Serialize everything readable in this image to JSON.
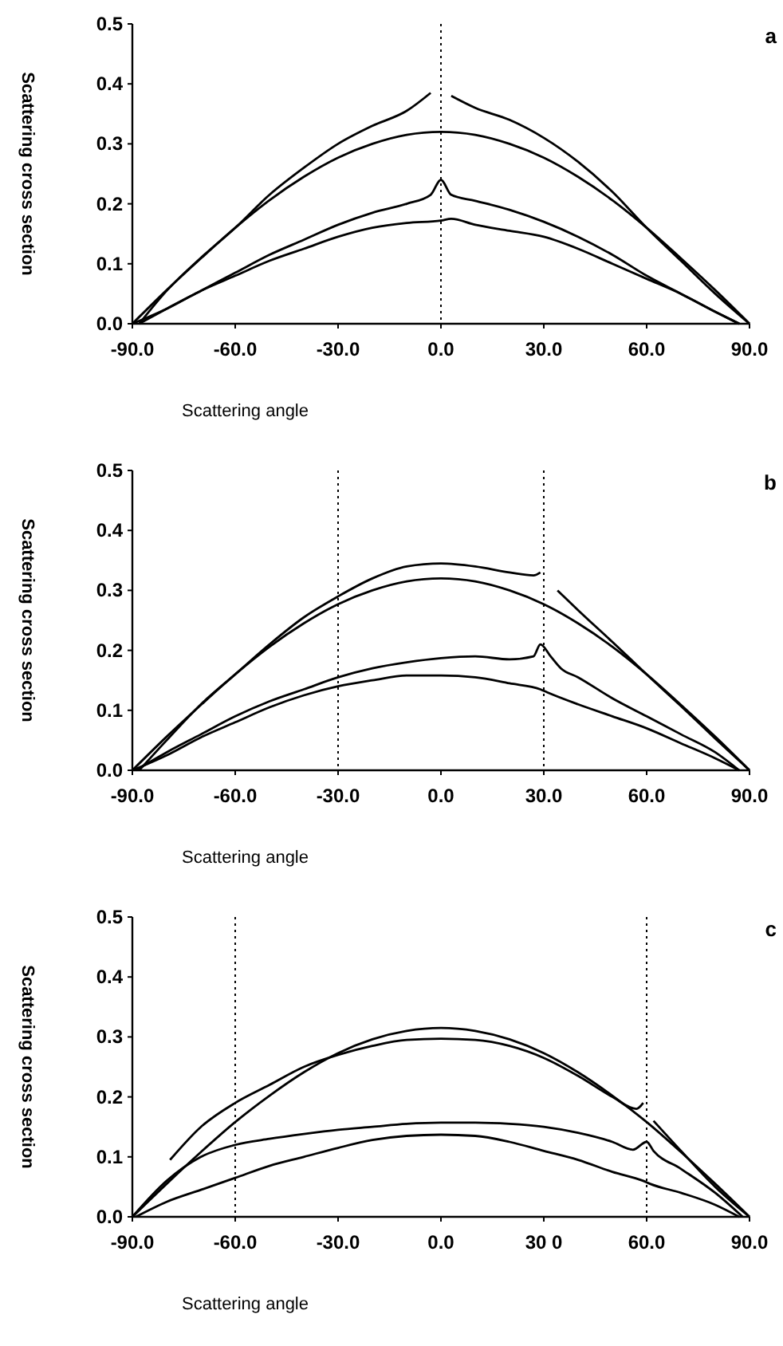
{
  "chart_data": [
    {
      "type": "line",
      "title": "a",
      "xlabel": "Scattering angle",
      "ylabel": "Scattering cross section",
      "xlim": [
        -90,
        90
      ],
      "ylim": [
        0,
        0.5
      ],
      "xticks": [
        {
          "value": -90,
          "label": "-90.0"
        },
        {
          "value": -60,
          "label": "-60.0"
        },
        {
          "value": -30,
          "label": "-30.0"
        },
        {
          "value": 0,
          "label": "0.0"
        },
        {
          "value": 30,
          "label": "30.0"
        },
        {
          "value": 60,
          "label": "60.0"
        },
        {
          "value": 90,
          "label": "90.0"
        }
      ],
      "yticks": [
        {
          "value": 0,
          "label": "0.0"
        },
        {
          "value": 0.1,
          "label": "0.1"
        },
        {
          "value": 0.2,
          "label": "0.2"
        },
        {
          "value": 0.3,
          "label": "0.3"
        },
        {
          "value": 0.4,
          "label": "0.4"
        },
        {
          "value": 0.5,
          "label": "0.5"
        }
      ],
      "ref_lines": [
        {
          "axis": "x",
          "value": 0,
          "line_style": "dotted",
          "color": "#000000"
        }
      ],
      "series": [
        {
          "color": "#000000",
          "x": [
            -90,
            -80,
            -70,
            -60,
            -50,
            -40,
            -30,
            -20,
            -10,
            0,
            10,
            20,
            30,
            40,
            50,
            60,
            70,
            80,
            90
          ],
          "values": [
            0,
            0.056,
            0.109,
            0.16,
            0.206,
            0.245,
            0.277,
            0.3,
            0.315,
            0.32,
            0.315,
            0.3,
            0.277,
            0.245,
            0.206,
            0.16,
            0.109,
            0.056,
            0
          ]
        },
        {
          "color": "#000000",
          "x": [
            -88,
            -80,
            -70,
            -60,
            -50,
            -40,
            -30,
            -20,
            -10,
            -3,
            0,
            3,
            10,
            20,
            30,
            40,
            50,
            60,
            70,
            80,
            90
          ],
          "values": [
            0,
            0.055,
            0.11,
            0.16,
            0.215,
            0.26,
            0.3,
            0.33,
            0.355,
            0.385,
            null,
            0.38,
            0.36,
            0.34,
            0.31,
            0.27,
            0.22,
            0.16,
            0.105,
            0.05,
            0
          ]
        },
        {
          "color": "#000000",
          "x": [
            -88,
            -80,
            -70,
            -60,
            -50,
            -40,
            -30,
            -20,
            -10,
            -3,
            0,
            3,
            10,
            20,
            30,
            40,
            50,
            60,
            70,
            80,
            87
          ],
          "values": [
            0,
            0.025,
            0.055,
            0.085,
            0.115,
            0.14,
            0.165,
            0.185,
            0.2,
            0.215,
            0.24,
            0.215,
            0.205,
            0.19,
            0.17,
            0.145,
            0.115,
            0.08,
            0.05,
            0.02,
            0
          ]
        },
        {
          "color": "#000000",
          "x": [
            -90,
            -80,
            -70,
            -60,
            -50,
            -40,
            -30,
            -20,
            -10,
            0,
            3,
            10,
            20,
            30,
            40,
            50,
            60,
            70,
            80,
            87
          ],
          "values": [
            0,
            0.025,
            0.055,
            0.08,
            0.105,
            0.125,
            0.145,
            0.16,
            0.168,
            0.172,
            0.175,
            0.165,
            0.155,
            0.145,
            0.125,
            0.1,
            0.075,
            0.05,
            0.02,
            0
          ]
        }
      ]
    },
    {
      "type": "line",
      "title": "b",
      "xlabel": "Scattering angle",
      "ylabel": "Scattering cross section",
      "xlim": [
        -90,
        90
      ],
      "ylim": [
        0,
        0.5
      ],
      "xticks": [
        {
          "value": -90,
          "label": "-90.0"
        },
        {
          "value": -60,
          "label": "-60.0"
        },
        {
          "value": -30,
          "label": "-30.0"
        },
        {
          "value": 0,
          "label": "0.0"
        },
        {
          "value": 30,
          "label": "30.0"
        },
        {
          "value": 60,
          "label": "60.0"
        },
        {
          "value": 90,
          "label": "90.0"
        }
      ],
      "yticks": [
        {
          "value": 0,
          "label": "0.0"
        },
        {
          "value": 0.1,
          "label": "0.1"
        },
        {
          "value": 0.2,
          "label": "0.2"
        },
        {
          "value": 0.3,
          "label": "0.3"
        },
        {
          "value": 0.4,
          "label": "0.4"
        },
        {
          "value": 0.5,
          "label": "0.5"
        }
      ],
      "ref_lines": [
        {
          "axis": "x",
          "value": -30,
          "line_style": "dotted",
          "color": "#000000"
        },
        {
          "axis": "x",
          "value": 30,
          "line_style": "dotted",
          "color": "#000000"
        }
      ],
      "series": [
        {
          "color": "#000000",
          "x": [
            -90,
            -80,
            -70,
            -60,
            -50,
            -40,
            -30,
            -20,
            -10,
            0,
            10,
            20,
            30,
            40,
            50,
            60,
            70,
            80,
            90
          ],
          "values": [
            0,
            0.056,
            0.109,
            0.16,
            0.206,
            0.245,
            0.277,
            0.3,
            0.315,
            0.32,
            0.315,
            0.3,
            0.277,
            0.245,
            0.206,
            0.16,
            0.109,
            0.056,
            0
          ]
        },
        {
          "color": "#000000",
          "x": [
            -88,
            -80,
            -70,
            -60,
            -50,
            -40,
            -30,
            -20,
            -10,
            0,
            10,
            20,
            27,
            29,
            31,
            34,
            40,
            50,
            60,
            70,
            80,
            90
          ],
          "values": [
            0,
            0.05,
            0.11,
            0.16,
            0.21,
            0.255,
            0.29,
            0.32,
            0.34,
            0.345,
            0.34,
            0.33,
            0.325,
            0.33,
            null,
            0.3,
            0.267,
            0.214,
            0.16,
            0.107,
            0.053,
            0
          ]
        },
        {
          "color": "#000000",
          "x": [
            -89,
            -80,
            -70,
            -60,
            -50,
            -40,
            -30,
            -20,
            -10,
            0,
            10,
            20,
            27,
            29,
            32,
            35,
            40,
            50,
            60,
            70,
            80,
            87
          ],
          "values": [
            0,
            0.03,
            0.06,
            0.09,
            0.115,
            0.135,
            0.155,
            0.17,
            0.18,
            0.187,
            0.19,
            0.185,
            0.19,
            0.21,
            0.19,
            0.17,
            0.155,
            0.12,
            0.09,
            0.06,
            0.03,
            0
          ]
        },
        {
          "color": "#000000",
          "x": [
            -90,
            -80,
            -70,
            -60,
            -50,
            -40,
            -30,
            -20,
            -10,
            0,
            10,
            20,
            29,
            31,
            40,
            50,
            60,
            70,
            80,
            87
          ],
          "values": [
            0,
            0.025,
            0.055,
            0.08,
            0.105,
            0.125,
            0.14,
            0.15,
            0.158,
            0.158,
            0.155,
            0.145,
            0.135,
            0.13,
            0.11,
            0.09,
            0.07,
            0.045,
            0.02,
            0
          ]
        }
      ]
    },
    {
      "type": "line",
      "title": "c",
      "xlabel": "Scattering angle",
      "ylabel": "Scattering cross section",
      "xlim": [
        -90,
        90
      ],
      "ylim": [
        0,
        0.5
      ],
      "xticks": [
        {
          "value": -90,
          "label": "-90.0"
        },
        {
          "value": -60,
          "label": "-60.0"
        },
        {
          "value": -30,
          "label": "-30.0"
        },
        {
          "value": 0,
          "label": "0.0"
        },
        {
          "value": 30,
          "label": "30 0"
        },
        {
          "value": 60,
          "label": "60.0"
        },
        {
          "value": 90,
          "label": "90.0"
        }
      ],
      "yticks": [
        {
          "value": 0,
          "label": "0.0"
        },
        {
          "value": 0.1,
          "label": "0.1"
        },
        {
          "value": 0.2,
          "label": "0.2"
        },
        {
          "value": 0.3,
          "label": "0.3"
        },
        {
          "value": 0.4,
          "label": "0.4"
        },
        {
          "value": 0.5,
          "label": "0.5"
        }
      ],
      "ref_lines": [
        {
          "axis": "x",
          "value": -60,
          "line_style": "dotted",
          "color": "#000000"
        },
        {
          "axis": "x",
          "value": 60,
          "line_style": "dotted",
          "color": "#000000"
        }
      ],
      "series": [
        {
          "color": "#000000",
          "x": [
            -90,
            -80,
            -70,
            -60,
            -50,
            -40,
            -30,
            -20,
            -10,
            0,
            10,
            20,
            30,
            40,
            50,
            60,
            70,
            80,
            90
          ],
          "values": [
            0,
            0.055,
            0.108,
            0.158,
            0.202,
            0.241,
            0.273,
            0.296,
            0.31,
            0.315,
            0.31,
            0.296,
            0.273,
            0.241,
            0.202,
            0.158,
            0.108,
            0.055,
            0
          ]
        },
        {
          "color": "#000000",
          "x": [
            -79,
            -70,
            -60,
            -50,
            -40,
            -30,
            -20,
            -10,
            0,
            10,
            20,
            30,
            40,
            50,
            57,
            59,
            60,
            62,
            70,
            80,
            90
          ],
          "values": [
            0.095,
            0.15,
            0.19,
            0.22,
            0.25,
            0.27,
            0.285,
            0.295,
            0.297,
            0.295,
            0.285,
            0.265,
            0.235,
            0.2,
            0.18,
            0.19,
            null,
            0.16,
            0.11,
            0.05,
            0
          ]
        },
        {
          "color": "#000000",
          "x": [
            -90,
            -80,
            -70,
            -60,
            -50,
            -40,
            -30,
            -20,
            -10,
            0,
            10,
            20,
            30,
            40,
            50,
            56,
            60,
            62,
            70,
            80,
            88
          ],
          "values": [
            0,
            0.06,
            0.1,
            0.12,
            0.13,
            0.138,
            0.145,
            0.15,
            0.155,
            0.157,
            0.157,
            0.155,
            0.15,
            0.14,
            0.125,
            0.112,
            0.125,
            0.11,
            0.08,
            0.04,
            0
          ]
        },
        {
          "color": "#000000",
          "x": [
            -89,
            -80,
            -70,
            -60,
            -50,
            -40,
            -30,
            -20,
            -10,
            0,
            10,
            20,
            30,
            40,
            50,
            59,
            61,
            70,
            80,
            87
          ],
          "values": [
            0,
            0.025,
            0.045,
            0.065,
            0.085,
            0.1,
            0.115,
            0.128,
            0.135,
            0.137,
            0.135,
            0.125,
            0.11,
            0.095,
            0.075,
            0.06,
            0.055,
            0.04,
            0.02,
            0
          ]
        }
      ]
    }
  ]
}
